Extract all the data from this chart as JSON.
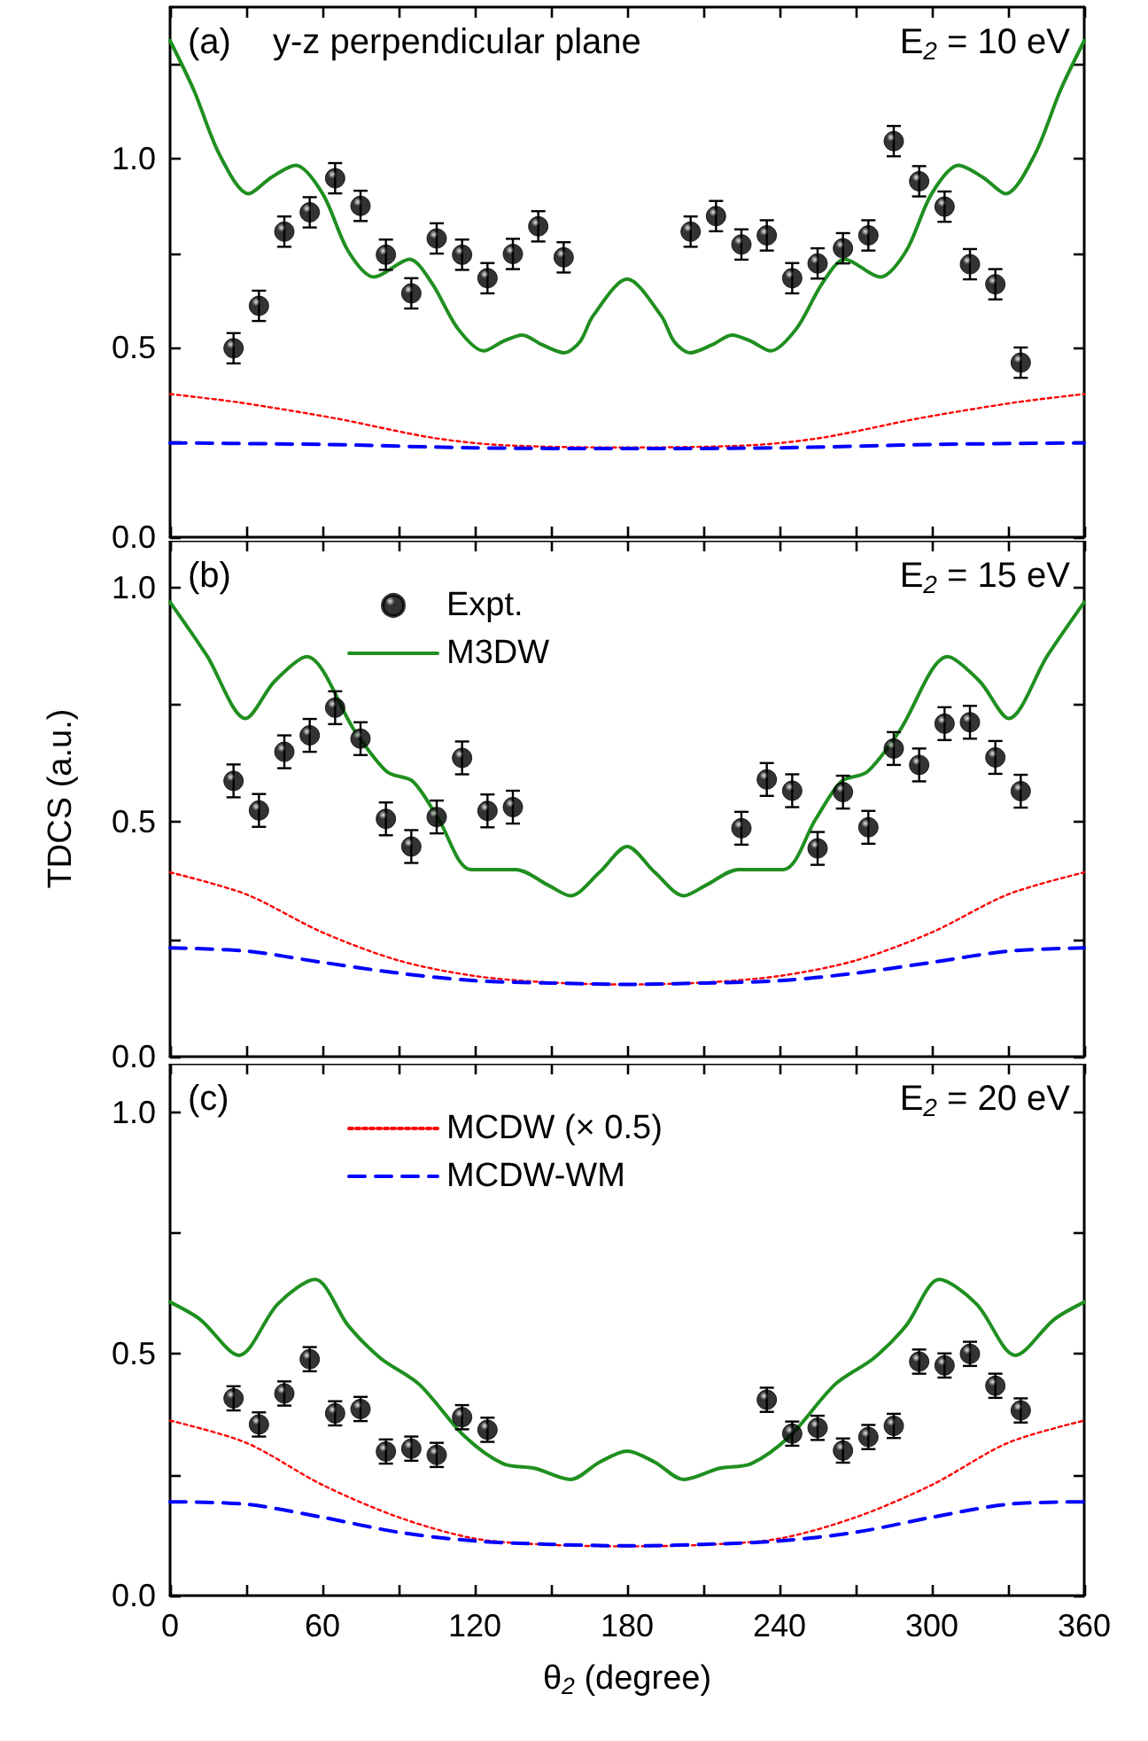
{
  "chart_data": [
    {
      "type": "line",
      "annotations": [
        "(a)",
        "y-z perpendicular plane",
        "E$_{2}$ = 10 eV"
      ],
      "xlim": [
        0,
        360
      ],
      "xticks": [
        0,
        {
          "value": 30,
          "label": null
        },
        60,
        {
          "value": 90,
          "label": null
        },
        120,
        {
          "value": 150,
          "label": null
        },
        180,
        {
          "value": 210,
          "label": null
        },
        240,
        {
          "value": 270,
          "label": null
        },
        300,
        {
          "value": 330,
          "label": null
        },
        360
      ],
      "ylim": [
        0,
        1.4
      ],
      "yticks": [
        {
          "value": 0,
          "label": "0.0"
        },
        {
          "value": 0.25,
          "label": null
        },
        {
          "value": 0.5,
          "label": "0.5"
        },
        {
          "value": 0.75,
          "label": null
        },
        {
          "value": 1.0,
          "label": "1.0"
        },
        {
          "value": 1.25,
          "label": null
        }
      ],
      "tick_labels": "y",
      "series": [
        {
          "type": "scatter",
          "marker": "circle",
          "color": "#000000",
          "x": [
            25,
            35,
            45,
            55,
            65,
            75,
            85,
            95,
            105,
            115,
            125,
            135,
            145,
            155,
            205,
            215,
            225,
            235,
            245,
            255,
            265,
            275,
            285,
            295,
            305,
            315,
            325,
            335
          ],
          "values": [
            0.499,
            0.611,
            0.807,
            0.858,
            0.948,
            0.875,
            0.746,
            0.644,
            0.789,
            0.746,
            0.684,
            0.748,
            0.821,
            0.739,
            0.807,
            0.848,
            0.773,
            0.797,
            0.684,
            0.723,
            0.763,
            0.797,
            1.046,
            0.94,
            0.873,
            0.721,
            0.668,
            0.461
          ],
          "errors": [
            0.04,
            0.04,
            0.04,
            0.04,
            0.04,
            0.04,
            0.04,
            0.04,
            0.04,
            0.04,
            0.04,
            0.04,
            0.04,
            0.04,
            0.04,
            0.04,
            0.04,
            0.04,
            0.04,
            0.04,
            0.04,
            0.04,
            0.04,
            0.04,
            0.04,
            0.04,
            0.04,
            0.04
          ]
        },
        {
          "marker": "none",
          "line_style": "solid",
          "color": "#1f8f1f",
          "x": [
            0,
            9.4,
            19.5,
            30.9,
            39.8,
            49.5,
            60.1,
            70.2,
            80.4,
            94.3,
            103.2,
            113.3,
            123.5,
            131.1,
            138.7,
            146.3,
            155.2,
            161.5,
            166.6,
            180,
            193.4,
            198.5,
            204.8,
            213.7,
            221.3,
            228.9,
            236.5,
            246.7,
            256.8,
            265.7,
            279.6,
            289.8,
            299.9,
            310.5,
            320.2,
            329.1,
            340.5,
            350.6,
            360
          ],
          "values": [
            1.311,
            1.18,
            1.01,
            0.907,
            0.95,
            0.982,
            0.907,
            0.755,
            0.687,
            0.734,
            0.67,
            0.551,
            0.492,
            0.517,
            0.534,
            0.509,
            0.487,
            0.517,
            0.585,
            0.682,
            0.585,
            0.517,
            0.487,
            0.509,
            0.534,
            0.517,
            0.492,
            0.551,
            0.67,
            0.734,
            0.687,
            0.755,
            0.907,
            0.982,
            0.95,
            0.907,
            1.01,
            1.18,
            1.311
          ]
        },
        {
          "marker": "none",
          "line_style": "dotted",
          "color": "#ff0000",
          "x": [
            0,
            27,
            65,
            103,
            131,
            180,
            229,
            257,
            295,
            333,
            360
          ],
          "values": [
            0.378,
            0.356,
            0.314,
            0.263,
            0.243,
            0.237,
            0.243,
            0.263,
            0.314,
            0.356,
            0.378
          ]
        },
        {
          "marker": "none",
          "line_style": "dashed",
          "color": "#0000ff",
          "x": [
            0,
            60,
            120,
            180,
            240,
            300,
            360
          ],
          "values": [
            0.249,
            0.245,
            0.236,
            0.234,
            0.236,
            0.245,
            0.249
          ]
        }
      ]
    },
    {
      "type": "line",
      "ylabel": "TDCS (a.u.)",
      "annotations": [
        "(b)",
        "E$_{2}$ = 15 eV"
      ],
      "legend": "top left",
      "xlim": [
        0,
        360
      ],
      "xticks": [
        0,
        {
          "value": 30,
          "label": null
        },
        60,
        {
          "value": 90,
          "label": null
        },
        120,
        {
          "value": 150,
          "label": null
        },
        180,
        {
          "value": 210,
          "label": null
        },
        240,
        {
          "value": 270,
          "label": null
        },
        300,
        {
          "value": 330,
          "label": null
        },
        360
      ],
      "ylim": [
        0,
        1.1
      ],
      "yticks": [
        {
          "value": 0,
          "label": "0.0"
        },
        {
          "value": 0.25,
          "label": null
        },
        {
          "value": 0.5,
          "label": "0.5"
        },
        {
          "value": 0.75,
          "label": null
        },
        {
          "value": 1.0,
          "label": "1.0"
        }
      ],
      "tick_labels": "y",
      "series": [
        {
          "type": "scatter",
          "name": "Expt.",
          "marker": "circle",
          "color": "#000000",
          "x": [
            25,
            35,
            45,
            55,
            65,
            75,
            85,
            95,
            105,
            115,
            125,
            135,
            225,
            235,
            245,
            255,
            265,
            275,
            285,
            295,
            305,
            315,
            325,
            335
          ],
          "values": [
            0.588,
            0.525,
            0.65,
            0.685,
            0.744,
            0.678,
            0.507,
            0.448,
            0.511,
            0.637,
            0.524,
            0.532,
            0.487,
            0.591,
            0.567,
            0.444,
            0.564,
            0.489,
            0.657,
            0.622,
            0.71,
            0.713,
            0.638,
            0.566
          ],
          "errors": [
            0.035,
            0.035,
            0.035,
            0.035,
            0.035,
            0.035,
            0.035,
            0.035,
            0.035,
            0.035,
            0.035,
            0.035,
            0.035,
            0.035,
            0.035,
            0.035,
            0.035,
            0.035,
            0.035,
            0.035,
            0.035,
            0.035,
            0.035,
            0.035
          ]
        },
        {
          "name": "M3DW",
          "marker": "none",
          "line_style": "solid",
          "color": "#1f8f1f",
          "x": [
            0,
            14.5,
            29.7,
            41.1,
            53.8,
            72.8,
            85.5,
            95.6,
            105.7,
            118.4,
            136.2,
            148.8,
            157.7,
            169.1,
            180,
            190.9,
            202.3,
            211.2,
            223.8,
            241.6,
            254.3,
            264.4,
            274.5,
            287.2,
            306.2,
            318.9,
            330.3,
            345.5,
            360
          ],
          "values": [
            0.969,
            0.855,
            0.721,
            0.8,
            0.853,
            0.694,
            0.607,
            0.587,
            0.507,
            0.399,
            0.399,
            0.366,
            0.343,
            0.393,
            0.448,
            0.393,
            0.343,
            0.366,
            0.399,
            0.399,
            0.507,
            0.587,
            0.607,
            0.694,
            0.853,
            0.8,
            0.721,
            0.855,
            0.969
          ]
        },
        {
          "marker": "none",
          "line_style": "dotted",
          "color": "#ff0000",
          "x": [
            0,
            30,
            60,
            90,
            120,
            150,
            180,
            210,
            240,
            270,
            300,
            330,
            360
          ],
          "values": [
            0.393,
            0.346,
            0.265,
            0.205,
            0.172,
            0.158,
            0.154,
            0.158,
            0.172,
            0.205,
            0.265,
            0.346,
            0.393
          ]
        },
        {
          "marker": "none",
          "line_style": "dashed",
          "color": "#0000ff",
          "x": [
            0,
            30,
            60,
            90,
            120,
            150,
            180,
            210,
            240,
            270,
            300,
            330,
            360
          ],
          "values": [
            0.232,
            0.225,
            0.201,
            0.178,
            0.162,
            0.157,
            0.154,
            0.157,
            0.162,
            0.178,
            0.201,
            0.225,
            0.232
          ]
        }
      ]
    },
    {
      "type": "line",
      "xlabel": "θ$_{2}$ (degree)",
      "annotations": [
        "(c)",
        "E$_{2}$ = 20 eV"
      ],
      "legend": "top left",
      "xlim": [
        0,
        360
      ],
      "xticks": [
        0,
        {
          "value": 30,
          "label": null
        },
        60,
        {
          "value": 90,
          "label": null
        },
        120,
        {
          "value": 150,
          "label": null
        },
        180,
        {
          "value": 210,
          "label": null
        },
        240,
        {
          "value": 270,
          "label": null
        },
        300,
        {
          "value": 330,
          "label": null
        },
        360
      ],
      "ylim": [
        0,
        1.1
      ],
      "yticks": [
        {
          "value": 0,
          "label": "0.0"
        },
        {
          "value": 0.25,
          "label": null
        },
        {
          "value": 0.5,
          "label": "0.5"
        },
        {
          "value": 0.75,
          "label": null
        },
        {
          "value": 1.0,
          "label": "1.0"
        }
      ],
      "series": [
        {
          "type": "scatter",
          "marker": "circle",
          "color": "#000000",
          "x": [
            25,
            35,
            45,
            55,
            65,
            75,
            85,
            95,
            105,
            115,
            125,
            235,
            245,
            255,
            265,
            275,
            285,
            295,
            305,
            315,
            325,
            335
          ],
          "values": [
            0.408,
            0.354,
            0.418,
            0.489,
            0.377,
            0.386,
            0.298,
            0.304,
            0.291,
            0.369,
            0.343,
            0.405,
            0.335,
            0.347,
            0.3,
            0.328,
            0.351,
            0.484,
            0.476,
            0.5,
            0.434,
            0.383
          ],
          "errors": [
            0.025,
            0.025,
            0.025,
            0.025,
            0.025,
            0.025,
            0.025,
            0.025,
            0.025,
            0.025,
            0.025,
            0.025,
            0.025,
            0.025,
            0.025,
            0.025,
            0.025,
            0.025,
            0.025,
            0.025,
            0.025,
            0.025
          ]
        },
        {
          "marker": "none",
          "line_style": "solid",
          "color": "#1f8f1f",
          "x": [
            0,
            11.9,
            27.1,
            42.4,
            57.1,
            70.2,
            82.9,
            98.1,
            115.9,
            131.1,
            143.8,
            157.7,
            169.1,
            180,
            190.9,
            202.3,
            216.2,
            228.9,
            244.1,
            261.9,
            277.1,
            289.8,
            302.9,
            317.6,
            332.9,
            348.1,
            360
          ],
          "values": [
            0.607,
            0.571,
            0.497,
            0.603,
            0.654,
            0.558,
            0.491,
            0.437,
            0.33,
            0.273,
            0.263,
            0.24,
            0.276,
            0.299,
            0.276,
            0.24,
            0.263,
            0.273,
            0.33,
            0.437,
            0.491,
            0.558,
            0.654,
            0.603,
            0.497,
            0.571,
            0.607
          ]
        },
        {
          "name": "MCDW (× 0.5)",
          "marker": "none",
          "line_style": "dotted",
          "color": "#ff0000",
          "x": [
            0,
            30,
            60,
            90,
            120,
            150,
            180,
            210,
            240,
            270,
            300,
            330,
            360
          ],
          "values": [
            0.362,
            0.316,
            0.229,
            0.162,
            0.118,
            0.105,
            0.102,
            0.105,
            0.118,
            0.162,
            0.229,
            0.316,
            0.362
          ]
        },
        {
          "name": "MCDW-WM",
          "marker": "none",
          "line_style": "dashed",
          "color": "#0000ff",
          "x": [
            0,
            30,
            60,
            90,
            120,
            150,
            180,
            210,
            240,
            270,
            300,
            330,
            360
          ],
          "values": [
            0.194,
            0.189,
            0.162,
            0.131,
            0.113,
            0.106,
            0.103,
            0.106,
            0.113,
            0.131,
            0.162,
            0.189,
            0.194
          ]
        }
      ]
    }
  ]
}
